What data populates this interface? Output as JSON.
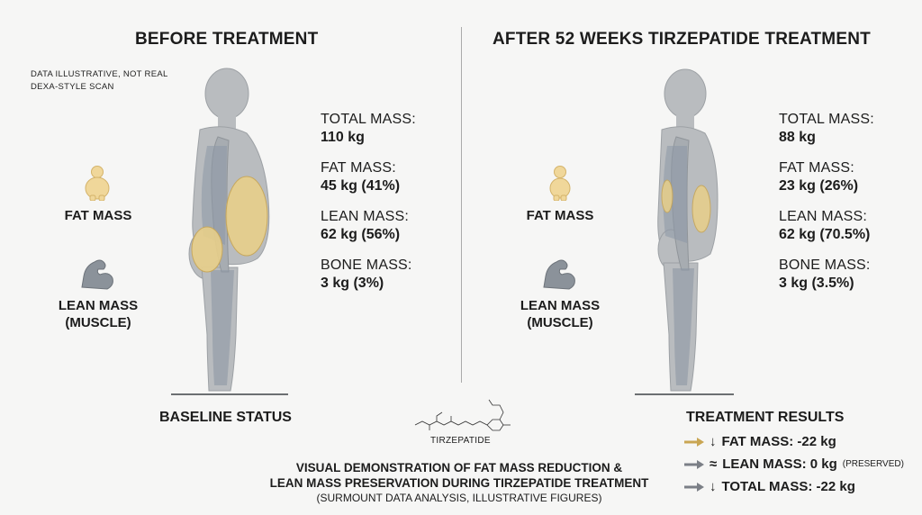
{
  "left_panel": {
    "title": "BEFORE TREATMENT",
    "disclaimer_line1": "DATA ILLUSTRATIVE, NOT REAL",
    "disclaimer_line2": "DEXA-STYLE SCAN",
    "stats": [
      {
        "label": "TOTAL MASS:",
        "value": "110 kg"
      },
      {
        "label": "FAT MASS:",
        "value": "45 kg (41%)"
      },
      {
        "label": "LEAN MASS:",
        "value": "62 kg (56%)"
      },
      {
        "label": "BONE MASS:",
        "value": "3 kg (3%)"
      }
    ],
    "legend_fat": "FAT MASS",
    "legend_lean_line1": "LEAN MASS",
    "legend_lean_line2": "(MUSCLE)",
    "status": "BASELINE STATUS"
  },
  "right_panel": {
    "title": "AFTER 52 WEEKS TIRZEPATIDE TREATMENT",
    "stats": [
      {
        "label": "TOTAL MASS:",
        "value": "88 kg"
      },
      {
        "label": "FAT MASS:",
        "value": "23 kg (26%)"
      },
      {
        "label": "LEAN MASS:",
        "value": "62 kg (70.5%)"
      },
      {
        "label": "BONE MASS:",
        "value": "3 kg (3.5%)"
      }
    ],
    "legend_fat": "FAT MASS",
    "legend_lean_line1": "LEAN MASS",
    "legend_lean_line2": "(MUSCLE)",
    "results_title": "TREATMENT RESULTS",
    "results": [
      {
        "symbol": "↓",
        "text": "FAT MASS: -22 kg",
        "note": "",
        "arrow_color": "#c9a653"
      },
      {
        "symbol": "≈",
        "text": "LEAN MASS: 0 kg",
        "note": "(PRESERVED)",
        "arrow_color": "#7b7f86"
      },
      {
        "symbol": "↓",
        "text": "TOTAL MASS: -22 kg",
        "note": "",
        "arrow_color": "#7b7f86"
      }
    ]
  },
  "molecule_label": "TIRZEPATIDE",
  "caption": {
    "line1": "VISUAL DEMONSTRATION OF FAT MASS REDUCTION &",
    "line2": "LEAN MASS PRESERVATION DURING TIRZEPATIDE TREATMENT",
    "line3": "(SURMOUNT DATA ANALYSIS, ILLUSTRATIVE FIGURES)"
  },
  "colors": {
    "fat": "#e8cf8a",
    "fat_stroke": "#c9a653",
    "lean": "#98a3b0",
    "body": "#b9bcbf",
    "arrow_grey": "#7b7f86"
  }
}
